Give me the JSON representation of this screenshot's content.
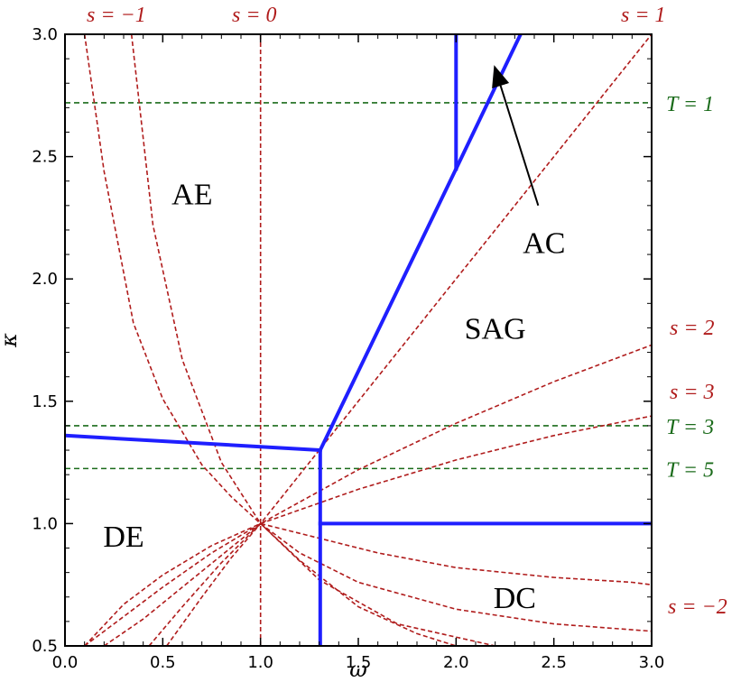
{
  "chart_data": {
    "type": "line",
    "title": "",
    "xlabel": "ω",
    "ylabel": "κ",
    "xlim": [
      0,
      3
    ],
    "ylim": [
      0.5,
      3
    ],
    "xticks": [
      "0.0",
      "0.5",
      "1.0",
      "1.5",
      "2.0",
      "2.5",
      "3.0"
    ],
    "yticks": [
      "0.5",
      "1.0",
      "1.5",
      "2.0",
      "2.5",
      "3.0"
    ],
    "grid": false,
    "legend": "none",
    "colors": {
      "boundary": "#1f1fff",
      "s_curves": "#b01c1c",
      "T_lines": "#1a6b1a",
      "annotation_arrow": "#000000"
    },
    "regions": [
      {
        "label": "AE",
        "x": 0.65,
        "y": 2.35
      },
      {
        "label": "AC",
        "x": 2.45,
        "y": 2.15
      },
      {
        "label": "SAG",
        "x": 2.2,
        "y": 1.8
      },
      {
        "label": "DE",
        "x": 0.3,
        "y": 0.95
      },
      {
        "label": "DC",
        "x": 2.3,
        "y": 0.7
      }
    ],
    "annotation": {
      "text": "AC",
      "from": [
        2.42,
        2.3
      ],
      "to": [
        2.2,
        2.86
      ]
    },
    "boundaries": [
      {
        "x": [
          0,
          1.305
        ],
        "y": [
          1.36,
          1.3
        ]
      },
      {
        "x": [
          1.305,
          2.0
        ],
        "y": [
          1.3,
          2.45
        ]
      },
      {
        "x": [
          2.0,
          2.33
        ],
        "y": [
          2.45,
          3.0
        ]
      },
      {
        "x": [
          1.305,
          1.305
        ],
        "y": [
          1.3,
          0.5
        ]
      },
      {
        "x": [
          1.305,
          3.0
        ],
        "y": [
          1.0,
          1.0
        ]
      },
      {
        "x": [
          2.0,
          2.0
        ],
        "y": [
          2.45,
          3.0
        ]
      }
    ],
    "s_curves": [
      {
        "name": "s = −1",
        "label_pos": "top",
        "x": [
          0.1,
          0.2,
          0.35,
          0.5,
          0.7,
          0.85,
          1.0,
          1.2,
          1.5,
          2.0,
          2.5,
          3.0
        ],
        "y": [
          3.0,
          2.44,
          1.82,
          1.51,
          1.24,
          1.11,
          1.0,
          0.88,
          0.76,
          0.65,
          0.59,
          0.56
        ]
      },
      {
        "name": "s = 0",
        "label_pos": "top",
        "x": [
          1.0,
          1.0
        ],
        "y": [
          0.5,
          3.0
        ]
      },
      {
        "name": "s = 1",
        "label_pos": "top-right",
        "x": [
          0.2,
          0.4,
          0.6,
          0.8,
          1.0,
          1.5,
          2.0,
          2.5,
          3.0
        ],
        "y": [
          0.5,
          0.61,
          0.74,
          0.87,
          1.0,
          1.5,
          2.0,
          2.5,
          3.0
        ]
      },
      {
        "name": "s = 2",
        "label_pos": "right",
        "x": [
          0.1,
          0.3,
          0.5,
          0.75,
          1.0,
          1.5,
          2.0,
          2.5,
          3.0
        ],
        "y": [
          0.5,
          0.62,
          0.74,
          0.88,
          1.0,
          1.22,
          1.41,
          1.58,
          1.73
        ]
      },
      {
        "name": "s = 3",
        "label_pos": "right",
        "x": [
          0.1,
          0.3,
          0.5,
          0.75,
          1.0,
          1.5,
          2.0,
          2.5,
          3.0
        ],
        "y": [
          0.5,
          0.67,
          0.79,
          0.91,
          1.0,
          1.14,
          1.26,
          1.36,
          1.44
        ]
      },
      {
        "name": "s = −2",
        "label_pos": "right",
        "x": [
          0.34,
          0.45,
          0.6,
          0.8,
          1.0,
          1.3,
          1.7,
          2.2,
          2.6,
          3.0
        ],
        "y": [
          3.0,
          2.22,
          1.67,
          1.25,
          1.0,
          0.77,
          0.59,
          0.5,
          0.5,
          0.5
        ]
      },
      {
        "name": "",
        "label_pos": "none",
        "x": [
          0.52,
          0.7,
          0.85,
          1.0,
          1.2,
          1.5,
          1.8,
          2.0
        ],
        "y": [
          0.5,
          0.7,
          0.86,
          1.0,
          0.85,
          0.66,
          0.55,
          0.5
        ]
      },
      {
        "name": "",
        "label_pos": "none",
        "x": [
          0.43,
          0.6,
          0.8,
          1.0,
          1.2,
          1.6,
          2.0,
          2.5,
          2.9,
          3.0
        ],
        "y": [
          0.5,
          0.66,
          0.84,
          1.0,
          0.96,
          0.88,
          0.82,
          0.78,
          0.76,
          0.75
        ]
      }
    ],
    "T_lines": [
      {
        "name": "T = 1",
        "y": 2.72
      },
      {
        "name": "T = 3",
        "y": 1.4
      },
      {
        "name": "T = 5",
        "y": 1.225
      }
    ]
  }
}
